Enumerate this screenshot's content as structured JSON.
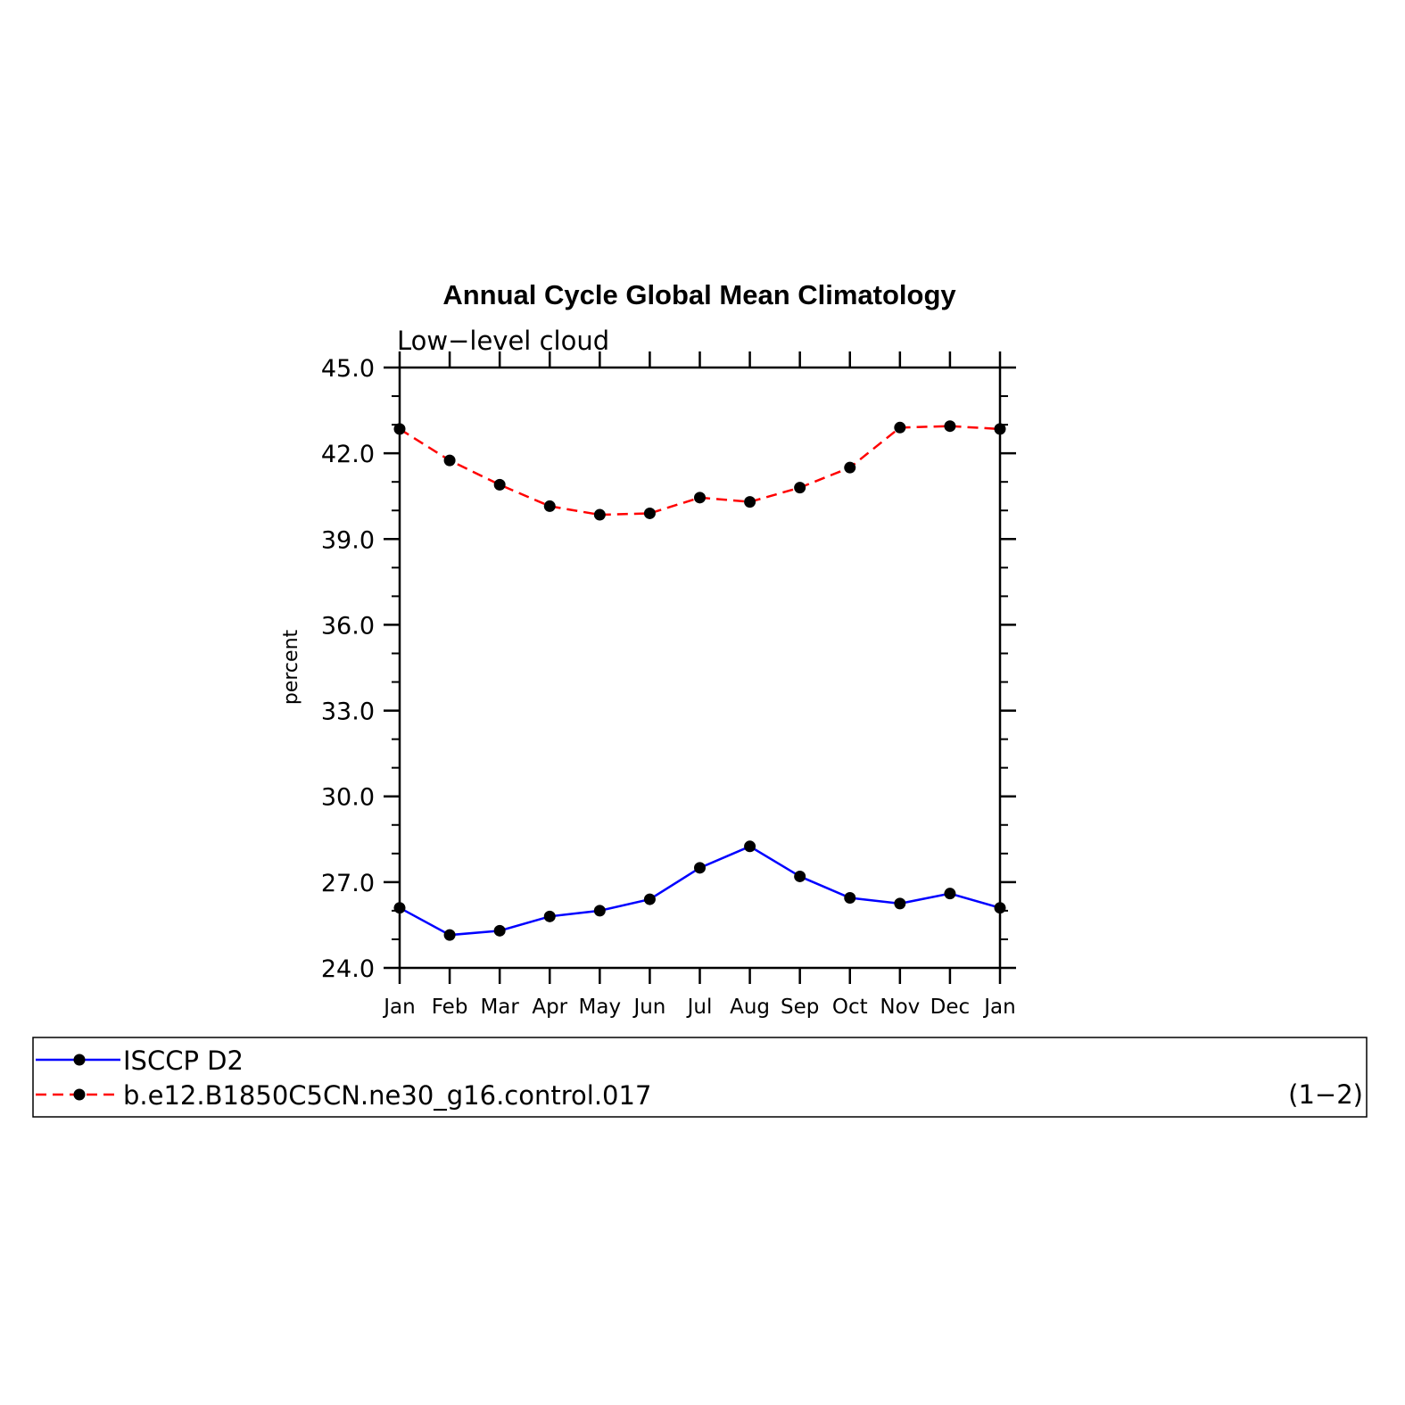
{
  "chart_data": {
    "type": "line",
    "title": "Annual Cycle Global Mean Climatology",
    "subtitle": "Low−level cloud",
    "xlabel": "",
    "ylabel": "percent",
    "categories": [
      "Jan",
      "Feb",
      "Mar",
      "Apr",
      "May",
      "Jun",
      "Jul",
      "Aug",
      "Sep",
      "Oct",
      "Nov",
      "Dec",
      "Jan"
    ],
    "ylim": [
      24.0,
      45.0
    ],
    "yticks": [
      "24.0",
      "27.0",
      "30.0",
      "33.0",
      "36.0",
      "39.0",
      "42.0",
      "45.0"
    ],
    "series": [
      {
        "name": "ISCCP D2",
        "color": "#0000ff",
        "dash": "solid",
        "values": [
          26.1,
          25.15,
          25.3,
          25.8,
          26.0,
          26.4,
          27.5,
          28.25,
          27.2,
          26.45,
          26.25,
          26.6,
          26.1
        ]
      },
      {
        "name": "b.e12.B1850C5CN.ne30_g16.control.017",
        "color": "#ff0000",
        "dash": "dashed",
        "values": [
          42.85,
          41.75,
          40.9,
          40.15,
          39.85,
          39.9,
          40.45,
          40.3,
          40.8,
          41.5,
          42.9,
          42.95,
          42.85
        ]
      }
    ],
    "legend_placement": "bottom",
    "legend_note": "(1−2)",
    "grid": false
  }
}
